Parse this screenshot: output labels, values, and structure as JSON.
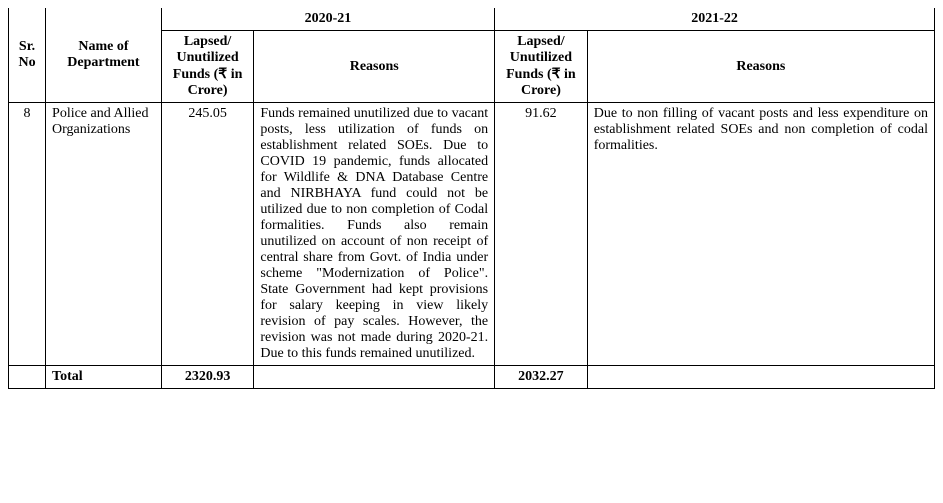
{
  "headers": {
    "sr": "Sr. No",
    "dept": "Name of Department",
    "y1": "2020-21",
    "y2": "2021-22",
    "funds": "Lapsed/ Unutilized Funds (₹ in Crore)",
    "reasons": "Reasons"
  },
  "row": {
    "sr": "8",
    "dept": "Police and Allied Organizations",
    "fund1": "245.05",
    "reason1": "Funds remained unutilized due to vacant posts, less utilization of funds on establishment related SOEs. Due to COVID 19 pandemic, funds allocated for Wildlife & DNA Database Centre and NIRBHAYA fund could not be utilized due to non completion of Codal formalities. Funds also remain unutilized on account of non receipt of central share from Govt. of India under scheme \"Modernization of Police\". State Government had kept provisions for salary keeping in view likely revision of pay scales. However, the revision was not made during 2020-21. Due to this funds remained unutilized.",
    "fund2": "91.62",
    "reason2": "Due to non filling of vacant posts and less expenditure on establishment related SOEs and non completion of codal formalities."
  },
  "total": {
    "label": "Total",
    "fund1": "2320.93",
    "fund2": "2032.27"
  }
}
